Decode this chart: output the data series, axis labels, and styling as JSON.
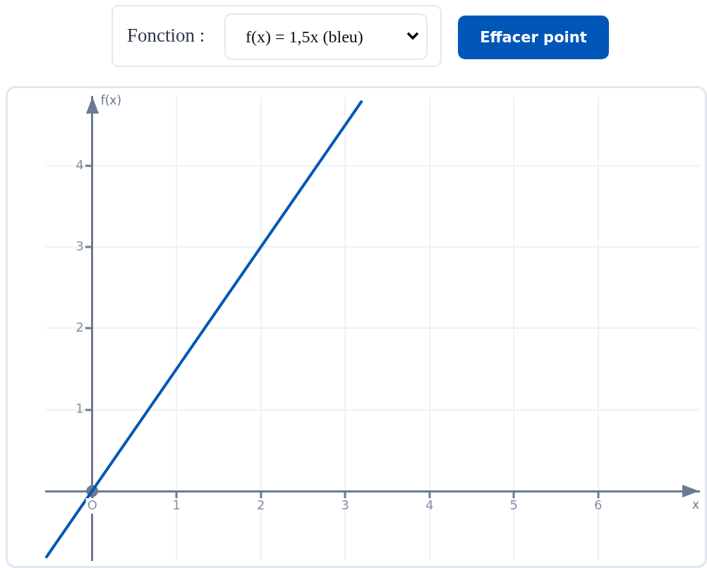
{
  "chart_data": {
    "type": "line",
    "xlabel": "x",
    "ylabel": "f(x)",
    "annotations": [
      "Fonction :",
      "f(x) = 1,5x (bleu)",
      "Effacer point"
    ],
    "xlim": [
      -0.55,
      7.2
    ],
    "ylim": [
      -0.85,
      4.85
    ],
    "xticks": [
      {
        "value": 0,
        "label": "O"
      },
      1,
      2,
      3,
      4,
      5,
      6
    ],
    "yticks": [
      1,
      2,
      3,
      4
    ],
    "grid": true,
    "legend": false,
    "series": [
      {
        "color": "#0057b8",
        "x": [
          -0.55,
          3.2
        ],
        "values": [
          -0.82,
          4.8
        ],
        "marker": "none"
      },
      {
        "type": "scatter",
        "color": "#6b7a90",
        "x": [
          0
        ],
        "values": [
          0
        ],
        "marker": "circle"
      }
    ]
  }
}
